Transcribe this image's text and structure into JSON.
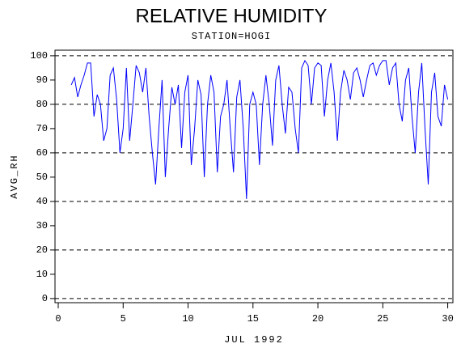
{
  "chart_data": {
    "type": "line",
    "title": "RELATIVE HUMIDITY",
    "subtitle": "STATION=HOGI",
    "xlabel": "JUL 1992",
    "ylabel": "AVG_RH",
    "x": [
      1,
      1.25,
      1.5,
      1.75,
      2,
      2.25,
      2.5,
      2.75,
      3,
      3.25,
      3.5,
      3.75,
      4,
      4.25,
      4.5,
      4.75,
      5,
      5.25,
      5.5,
      5.75,
      6,
      6.25,
      6.5,
      6.75,
      7,
      7.25,
      7.5,
      7.75,
      8,
      8.25,
      8.5,
      8.75,
      9,
      9.25,
      9.5,
      9.75,
      10,
      10.25,
      10.5,
      10.75,
      11,
      11.25,
      11.5,
      11.75,
      12,
      12.25,
      12.5,
      12.75,
      13,
      13.25,
      13.5,
      13.75,
      14,
      14.25,
      14.5,
      14.75,
      15,
      15.25,
      15.5,
      15.75,
      16,
      16.25,
      16.5,
      16.75,
      17,
      17.25,
      17.5,
      17.75,
      18,
      18.25,
      18.5,
      18.75,
      19,
      19.25,
      19.5,
      19.75,
      20,
      20.25,
      20.5,
      20.75,
      21,
      21.25,
      21.5,
      21.75,
      22,
      22.25,
      22.5,
      22.75,
      23,
      23.25,
      23.5,
      23.75,
      24,
      24.25,
      24.5,
      24.75,
      25,
      25.25,
      25.5,
      25.75,
      26,
      26.25,
      26.5,
      26.75,
      27,
      27.25,
      27.5,
      27.75,
      28,
      28.25,
      28.5,
      28.75,
      29,
      29.25,
      29.5,
      29.75,
      30
    ],
    "series": [
      {
        "name": "AVG_RH",
        "color": "#0000ff",
        "values": [
          88,
          91,
          83,
          88,
          92,
          97,
          97,
          75,
          84,
          80,
          65,
          70,
          92,
          95,
          82,
          60,
          70,
          95,
          65,
          80,
          96,
          93,
          85,
          95,
          75,
          60,
          47,
          70,
          90,
          50,
          70,
          87,
          80,
          88,
          62,
          85,
          92,
          55,
          70,
          90,
          84,
          50,
          80,
          92,
          85,
          52,
          75,
          80,
          90,
          70,
          52,
          83,
          90,
          70,
          41,
          80,
          85,
          80,
          55,
          80,
          92,
          80,
          63,
          90,
          96,
          80,
          68,
          87,
          85,
          70,
          60,
          95,
          98,
          96,
          80,
          95,
          97,
          96,
          75,
          90,
          97,
          85,
          65,
          85,
          94,
          90,
          82,
          93,
          95,
          90,
          83,
          90,
          96,
          97,
          92,
          96,
          98,
          98,
          88,
          95,
          97,
          80,
          73,
          90,
          95,
          75,
          60,
          85,
          97,
          70,
          47,
          85,
          93,
          75,
          71,
          88,
          82
        ]
      }
    ],
    "xlim": [
      -0.25,
      30.4
    ],
    "ylim": [
      -1.7,
      102.3
    ],
    "xticks": [
      0,
      5,
      10,
      15,
      20,
      25,
      30
    ],
    "yticks": [
      0,
      10,
      20,
      30,
      40,
      50,
      60,
      70,
      80,
      90,
      100
    ],
    "grid": true
  }
}
